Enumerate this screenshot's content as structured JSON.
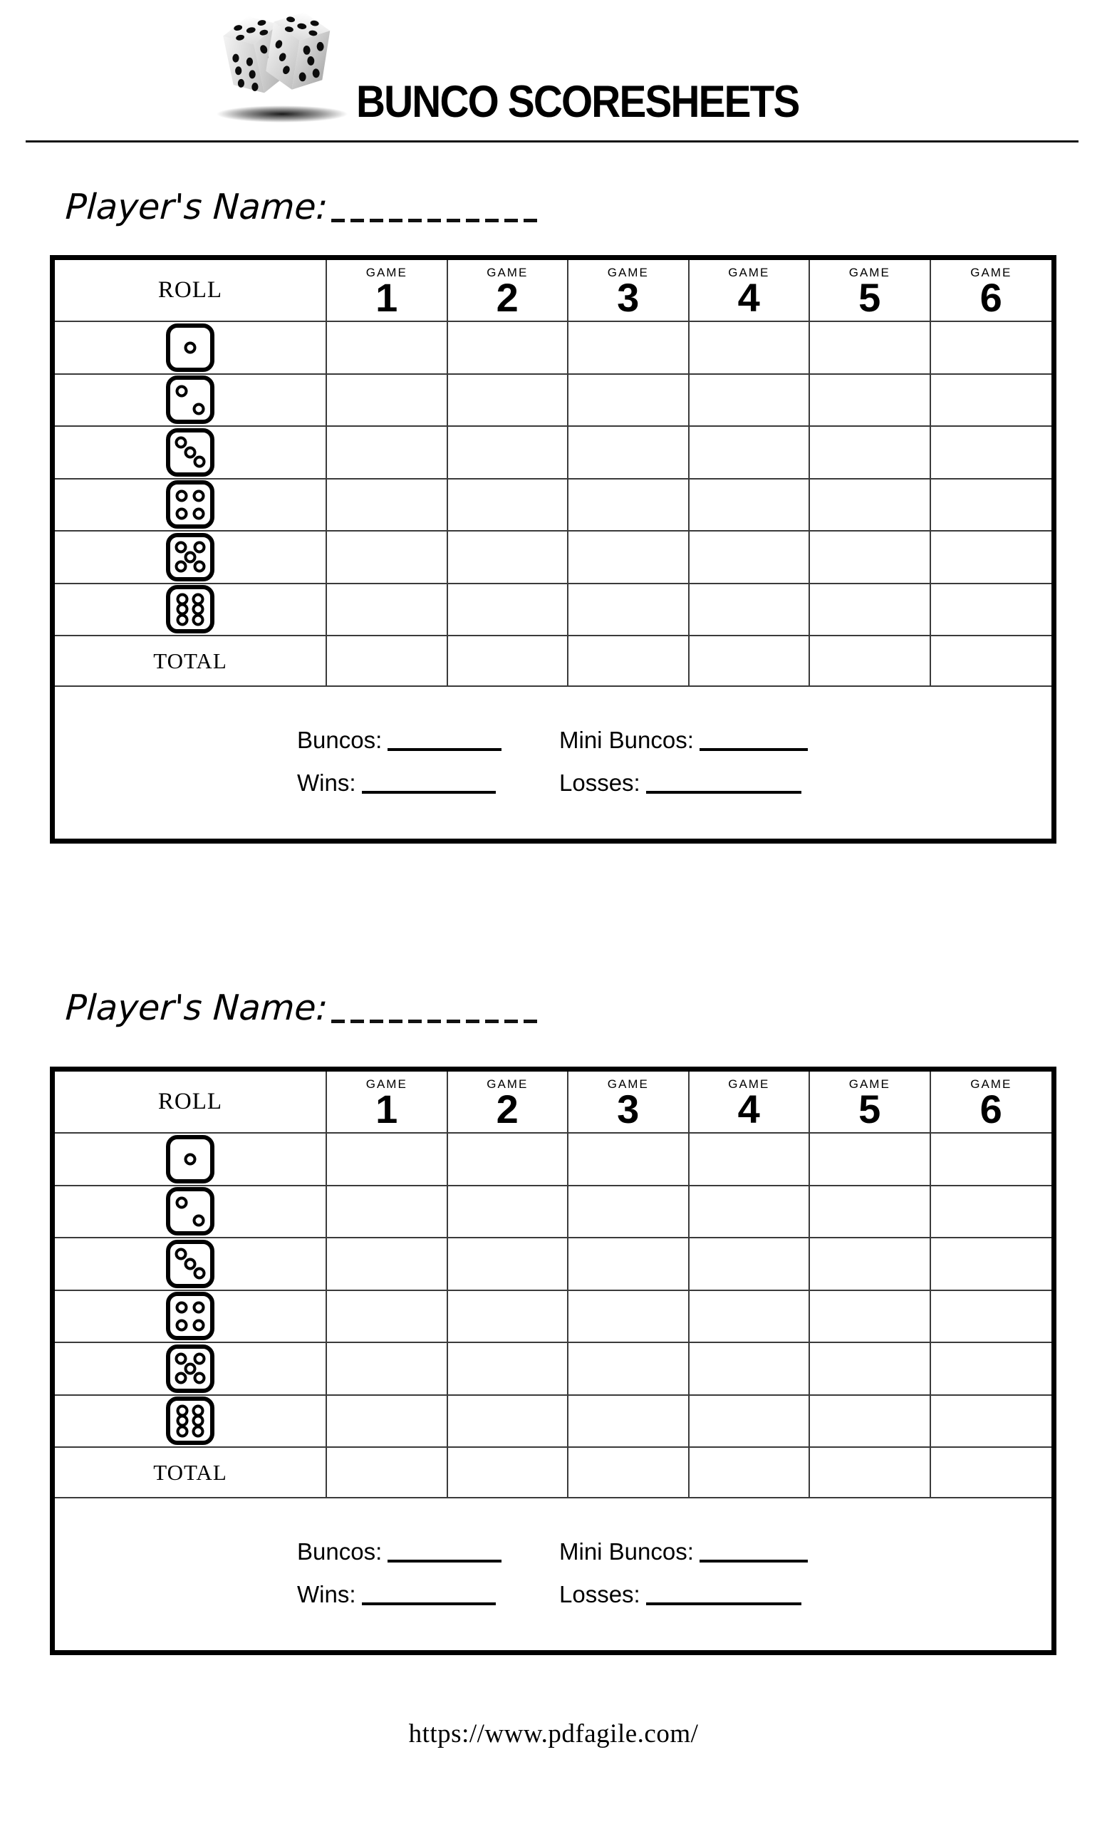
{
  "page": {
    "background": "#ffffff",
    "ink": "#000000",
    "grid_line": "#3a3a3a"
  },
  "header": {
    "title": "BUNCO SCORESHEETS",
    "logo_icon": "two-dice-logo"
  },
  "sheet": {
    "player_name_label": "Player's Name:",
    "roll_header": "ROLL",
    "game_word": "GAME",
    "games": [
      "1",
      "2",
      "3",
      "4",
      "5",
      "6"
    ],
    "dice": [
      1,
      2,
      3,
      4,
      5,
      6
    ],
    "dice_icons": [
      "die-face-1",
      "die-face-2",
      "die-face-3",
      "die-face-4",
      "die-face-5",
      "die-face-6"
    ],
    "total_label": "TOTAL",
    "stats": {
      "buncos_label": "Buncos:",
      "mini_buncos_label": "Mini Buncos:",
      "wins_label": "Wins:",
      "losses_label": "Losses:"
    }
  },
  "sheets_count": 2,
  "footer": {
    "url": "https://www.pdfagile.com/"
  }
}
